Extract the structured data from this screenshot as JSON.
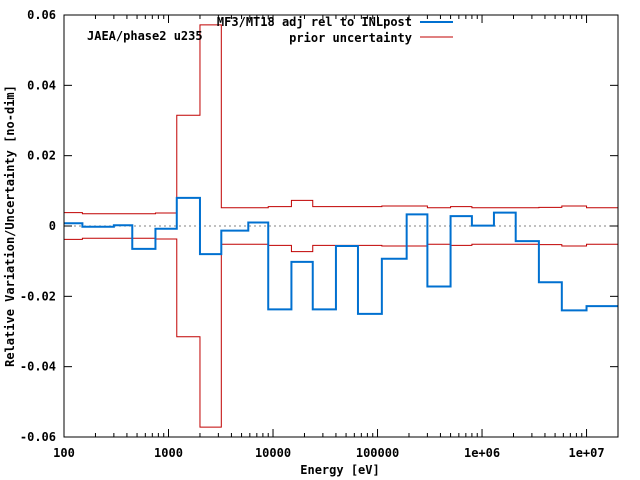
{
  "chart_data": {
    "type": "line",
    "title": "",
    "annotation": "JAEA/phase2 u235",
    "xlabel": "Energy [eV]",
    "ylabel": "Relative Variation/Uncertainty [no-dim]",
    "xscale": "log",
    "xlim": [
      100,
      20000000
    ],
    "ylim": [
      -0.06,
      0.06
    ],
    "xticks": [
      {
        "value": 100,
        "label": "100"
      },
      {
        "value": 1000,
        "label": "1000"
      },
      {
        "value": 10000,
        "label": "10000"
      },
      {
        "value": 100000,
        "label": "100000"
      },
      {
        "value": 1000000,
        "label": "1e+06"
      },
      {
        "value": 10000000,
        "label": "1e+07"
      }
    ],
    "yticks": [
      {
        "value": 0.06,
        "label": "0.06"
      },
      {
        "value": 0.04,
        "label": "0.04"
      },
      {
        "value": 0.02,
        "label": "0.02"
      },
      {
        "value": 0,
        "label": "0"
      },
      {
        "value": -0.02,
        "label": "-0.02"
      },
      {
        "value": -0.04,
        "label": "-0.04"
      },
      {
        "value": -0.06,
        "label": "-0.06"
      }
    ],
    "zero_line": true,
    "legend_position": "top-right",
    "colors": {
      "adjustment": "#0070d0",
      "uncertainty": "#c00000",
      "zero": "#808080"
    },
    "series": [
      {
        "name": "MF3/MT18 adj rel to INLpost",
        "style": "step",
        "bin_edges": [
          100,
          150,
          300,
          450,
          750,
          1200,
          2000,
          3200,
          5800,
          9000,
          15000,
          24000,
          40000,
          65000,
          110000,
          190000,
          300000,
          500000,
          800000,
          1300000,
          2100000,
          3500000,
          5800000,
          10000000,
          20000000
        ],
        "values": [
          0.0008,
          -0.0002,
          0.0002,
          -0.0065,
          -0.0008,
          0.008,
          -0.008,
          -0.0013,
          0.001,
          -0.0237,
          -0.0102,
          -0.0237,
          -0.0057,
          -0.025,
          -0.0093,
          0.0033,
          -0.0172,
          0.0028,
          0.0001,
          0.0038,
          -0.0043,
          -0.016,
          -0.024,
          -0.0228
        ]
      },
      {
        "name": "prior uncertainty",
        "style": "step-band",
        "bin_edges": [
          100,
          150,
          300,
          450,
          750,
          1200,
          2000,
          3200,
          5800,
          9000,
          15000,
          24000,
          40000,
          65000,
          110000,
          190000,
          300000,
          500000,
          800000,
          1300000,
          2100000,
          3500000,
          5800000,
          10000000,
          20000000
        ],
        "values": [
          0.0038,
          0.0035,
          0.0035,
          0.0035,
          0.0037,
          0.0315,
          0.0572,
          0.0052,
          0.0052,
          0.0055,
          0.0073,
          0.0055,
          0.0055,
          0.0055,
          0.0057,
          0.0057,
          0.0052,
          0.0055,
          0.0052,
          0.0052,
          0.0052,
          0.0053,
          0.0057,
          0.0052
        ]
      }
    ]
  }
}
